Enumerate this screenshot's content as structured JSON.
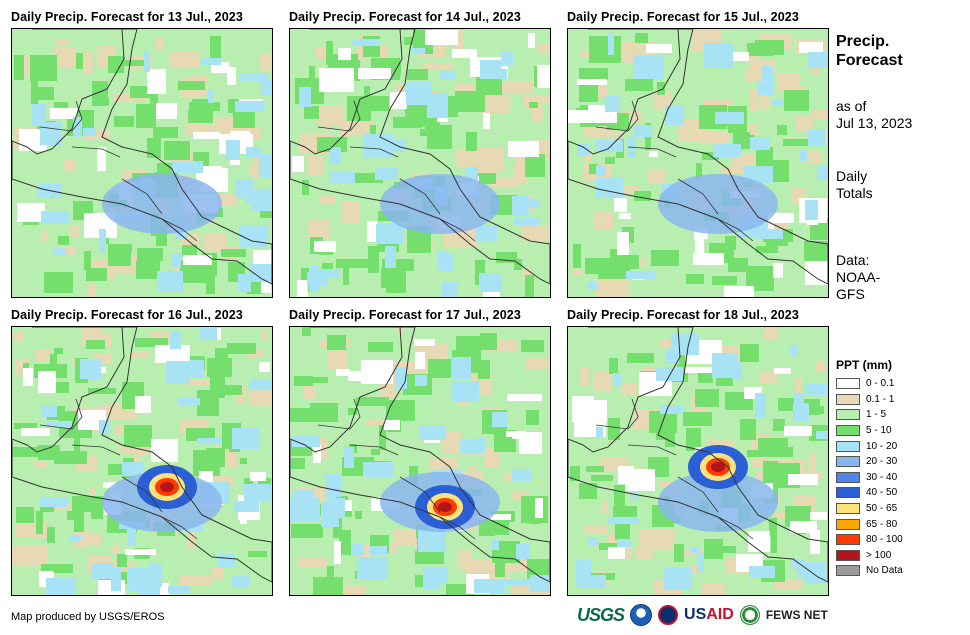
{
  "panels": [
    {
      "title": "Daily Precip. Forecast for 13 Jul., 2023",
      "hot": []
    },
    {
      "title": "Daily Precip. Forecast for 14 Jul., 2023",
      "hot": []
    },
    {
      "title": "Daily Precip. Forecast for 15 Jul., 2023",
      "hot": []
    },
    {
      "title": "Daily Precip. Forecast for 16 Jul., 2023",
      "hot": [
        "core-east"
      ]
    },
    {
      "title": "Daily Precip. Forecast for 17 Jul., 2023",
      "hot": [
        "core-south"
      ]
    },
    {
      "title": "Daily Precip. Forecast for 18 Jul., 2023",
      "hot": [
        "core-north"
      ]
    }
  ],
  "side": {
    "title_line1": "Precip.",
    "title_line2": "Forecast",
    "asof_line1": "as of",
    "asof_line2": "Jul 13, 2023",
    "daily_line1": "Daily",
    "daily_line2": "Totals",
    "data_line1": "Data:",
    "data_line2": "NOAA-",
    "data_line3": "GFS"
  },
  "legend": {
    "title": "PPT (mm)",
    "items": [
      {
        "label": "0 - 0.1",
        "color": "#ffffff"
      },
      {
        "label": "0.1 - 1",
        "color": "#e8d9b5"
      },
      {
        "label": "1 - 5",
        "color": "#b8efb0"
      },
      {
        "label": "5 - 10",
        "color": "#74df6c"
      },
      {
        "label": "10 - 20",
        "color": "#a8e2f5"
      },
      {
        "label": "20 - 30",
        "color": "#8ab6ee"
      },
      {
        "label": "30 - 40",
        "color": "#4f86e6"
      },
      {
        "label": "40 - 50",
        "color": "#2a5fd6"
      },
      {
        "label": "50 - 65",
        "color": "#ffe27a"
      },
      {
        "label": "65 - 80",
        "color": "#ffa500"
      },
      {
        "label": "80 - 100",
        "color": "#ff3b00"
      },
      {
        "label": "> 100",
        "color": "#b0161b"
      },
      {
        "label": "No Data",
        "color": "#9a9a9a"
      }
    ]
  },
  "credit": "Map produced by USGS/EROS",
  "logos": {
    "usgs": "USGS",
    "usaid_a": "US",
    "usaid_b": "AID",
    "fews": "FEWS NET"
  }
}
